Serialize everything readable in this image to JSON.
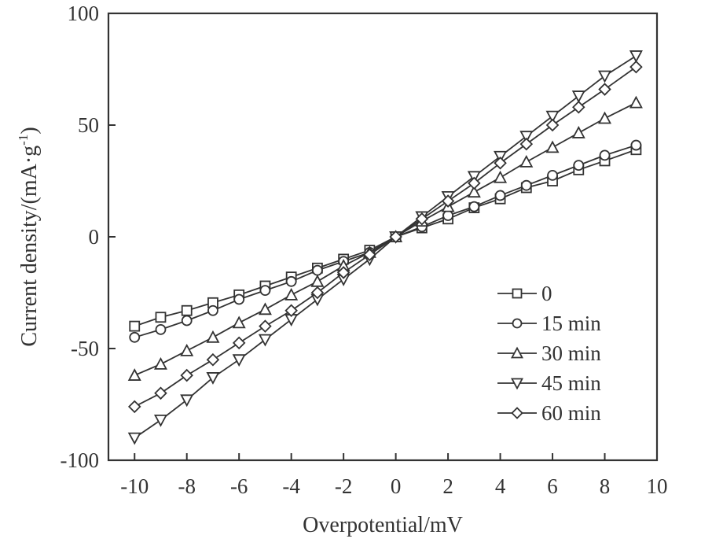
{
  "chart_data": {
    "type": "line",
    "xlabel": "Overpotential/mV",
    "ylabel_main": "Current density/(mA·g",
    "ylabel_sup": "-1",
    "ylabel_tail": ")",
    "xlim": [
      -11,
      10
    ],
    "ylim": [
      -100,
      100
    ],
    "xticks": [
      -10,
      -8,
      -6,
      -4,
      -2,
      0,
      2,
      4,
      6,
      8,
      10
    ],
    "yticks": [
      -100,
      -50,
      0,
      50,
      100
    ],
    "ytick_labels": [
      "-100",
      "-50",
      "0",
      "50",
      "100"
    ],
    "grid": false,
    "legend_position": "bottom-right",
    "x": [
      -10,
      -9,
      -8,
      -7,
      -6,
      -5,
      -4,
      -3,
      -2,
      -1,
      0,
      1,
      2,
      3,
      4,
      5,
      6,
      7,
      8,
      9.2
    ],
    "series": [
      {
        "name": "0",
        "marker": "square",
        "values": [
          -40,
          -36,
          -33,
          -29.5,
          -26,
          -22,
          -18,
          -14,
          -10,
          -6,
          0,
          4,
          8,
          13,
          17,
          22,
          25,
          30,
          34,
          39
        ]
      },
      {
        "name": "15 min",
        "marker": "circle",
        "values": [
          -45,
          -41.5,
          -37.5,
          -33,
          -28,
          -24,
          -20,
          -15,
          -11,
          -7,
          0,
          4.5,
          9.5,
          13.5,
          18.5,
          23,
          27.5,
          32,
          36.5,
          41
        ]
      },
      {
        "name": "30 min",
        "marker": "triangle-up",
        "values": [
          -62,
          -57,
          -51,
          -45,
          -38.5,
          -32.5,
          -26,
          -20,
          -13,
          -7,
          0,
          7,
          13.5,
          20,
          26.5,
          33.5,
          40,
          46.5,
          53,
          60
        ]
      },
      {
        "name": "45 min",
        "marker": "triangle-down",
        "values": [
          -90,
          -82,
          -73,
          -63,
          -55,
          -46,
          -37,
          -28,
          -19,
          -10,
          0,
          9,
          18,
          27,
          36,
          45,
          54,
          63,
          72,
          81
        ]
      },
      {
        "name": "60 min",
        "marker": "diamond",
        "values": [
          -76,
          -70,
          -62,
          -55,
          -47.5,
          -40,
          -33,
          -25,
          -16,
          -8,
          0,
          8,
          16,
          24,
          33,
          41.5,
          50,
          58,
          66,
          76
        ]
      }
    ]
  }
}
